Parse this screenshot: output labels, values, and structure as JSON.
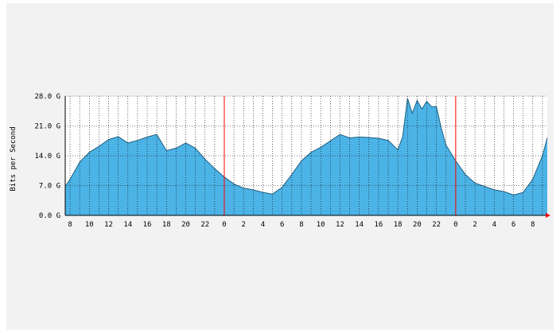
{
  "colors": {
    "background": "#f2f2f2",
    "plot_area": "#ffffff",
    "fill": "#4cb3e6",
    "line": "#1f5f7f",
    "grid": "#000000",
    "day_marker": "#ff0000",
    "axis": "#000000"
  },
  "chart_data": {
    "type": "area",
    "ylabel": "Bits per Second",
    "ylim": [
      0,
      28
    ],
    "yticks": [
      {
        "value": 0,
        "label": "0.0 G"
      },
      {
        "value": 7,
        "label": "7.0 G"
      },
      {
        "value": 14,
        "label": "14.0 G"
      },
      {
        "value": 21,
        "label": "21.0 G"
      },
      {
        "value": 28,
        "label": "28.0 G"
      }
    ],
    "x_hours_range": [
      7.5,
      57.5
    ],
    "xtick_labels": [
      "8",
      "10",
      "12",
      "14",
      "16",
      "18",
      "20",
      "22",
      "0",
      "2",
      "4",
      "6",
      "8",
      "10",
      "12",
      "14",
      "16",
      "18",
      "20",
      "22",
      "0",
      "2",
      "4",
      "6",
      "8"
    ],
    "xtick_positions": [
      8,
      10,
      12,
      14,
      16,
      18,
      20,
      22,
      24,
      26,
      28,
      30,
      32,
      34,
      36,
      38,
      40,
      42,
      44,
      46,
      48,
      50,
      52,
      54,
      56
    ],
    "day_markers": [
      24,
      48
    ],
    "grid": true,
    "series": [
      {
        "hours": [
          7.5,
          8,
          9,
          10,
          11,
          12,
          13,
          14,
          15,
          16,
          17,
          18,
          19,
          20,
          21,
          22,
          23,
          24,
          25,
          26,
          27,
          28,
          29,
          30,
          31,
          32,
          33,
          34,
          35,
          36,
          37,
          38,
          39,
          40,
          41,
          42,
          42.5,
          43,
          43.5,
          44,
          44.5,
          45,
          45.5,
          46,
          46.5,
          47,
          48,
          49,
          50,
          51,
          52,
          53,
          54,
          55,
          56,
          57,
          57.5
        ],
        "values": [
          6.8,
          8.5,
          12.5,
          14.8,
          16.2,
          17.8,
          18.5,
          17.0,
          17.6,
          18.4,
          19.0,
          15.2,
          15.8,
          17.0,
          15.8,
          13.2,
          11.0,
          9.0,
          7.4,
          6.4,
          6.0,
          5.4,
          5.0,
          6.6,
          9.6,
          12.8,
          14.8,
          16.0,
          17.5,
          19.0,
          18.2,
          18.4,
          18.3,
          18.1,
          17.6,
          15.4,
          18.5,
          27.5,
          24.0,
          27.0,
          25.0,
          26.8,
          25.5,
          25.6,
          20.5,
          16.5,
          12.8,
          9.6,
          7.6,
          6.8,
          6.0,
          5.6,
          4.8,
          5.4,
          8.5,
          14.0,
          18.2
        ]
      }
    ]
  }
}
